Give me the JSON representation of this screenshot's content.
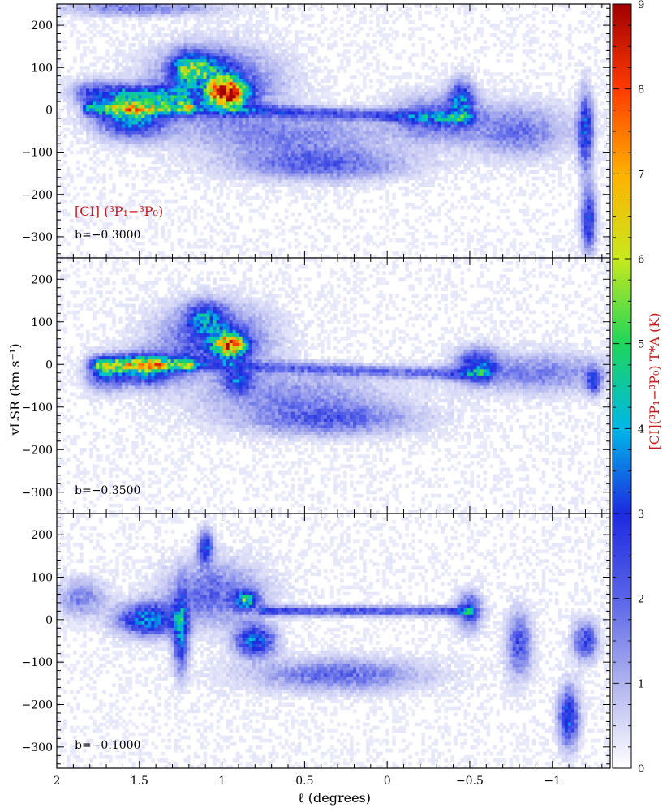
{
  "chart_data": {
    "type": "heatmap",
    "panels": [
      {
        "label": "b=−0.3000",
        "line_label": "[CI] (³P₁−³P₀)",
        "emission_blobs": [
          {
            "l": 0.97,
            "v": 40,
            "intensity": 7.2,
            "sl": 0.08,
            "sv": 22
          },
          {
            "l": 1.05,
            "v": 60,
            "intensity": 2.5,
            "sl": 0.25,
            "sv": 55
          },
          {
            "l": 1.55,
            "v": -20,
            "intensity": 3.6,
            "sl": 0.14,
            "sv": 30
          },
          {
            "l": 1.75,
            "v": 40,
            "intensity": 2.6,
            "sl": 0.1,
            "sv": 18
          },
          {
            "l": 1.22,
            "v": 100,
            "intensity": 2.8,
            "sl": 0.06,
            "sv": 25
          },
          {
            "l": 1.1,
            "v": 100,
            "intensity": 2.2,
            "sl": 0.1,
            "sv": 25
          },
          {
            "l": -0.45,
            "v": 25,
            "intensity": 3.0,
            "sl": 0.05,
            "sv": 30
          },
          {
            "l": -0.3,
            "v": -20,
            "intensity": 2.0,
            "sl": 0.18,
            "sv": 35
          },
          {
            "l": 0.4,
            "v": -130,
            "intensity": 1.8,
            "sl": 0.35,
            "sv": 25
          },
          {
            "l": -1.2,
            "v": -50,
            "intensity": 3.0,
            "sl": 0.03,
            "sv": 60
          },
          {
            "l": -1.22,
            "v": -260,
            "intensity": 2.8,
            "sl": 0.03,
            "sv": 50
          },
          {
            "l": 0.6,
            "v": -60,
            "intensity": 1.4,
            "sl": 0.4,
            "sv": 35
          },
          {
            "l": 1.5,
            "v": 240,
            "intensity": 1.5,
            "sl": 0.3,
            "sv": 12
          },
          {
            "l": -0.8,
            "v": -50,
            "intensity": 1.6,
            "sl": 0.2,
            "sv": 40
          }
        ],
        "lanes": [
          {
            "l1": 1.8,
            "v1": 3,
            "l2": 1.2,
            "v2": 3,
            "intensity": 3.4,
            "width": 6
          },
          {
            "l1": 1.2,
            "v1": 3,
            "l2": -0.5,
            "v2": -20,
            "intensity": 1.8,
            "width": 5
          },
          {
            "l1": 1.6,
            "v1": 35,
            "l2": 1.25,
            "v2": 35,
            "intensity": 2.6,
            "width": 8
          }
        ]
      },
      {
        "label": "b=−0.3500",
        "emission_blobs": [
          {
            "l": 0.95,
            "v": 45,
            "intensity": 5.6,
            "sl": 0.07,
            "sv": 20
          },
          {
            "l": 1.05,
            "v": 60,
            "intensity": 2.4,
            "sl": 0.22,
            "sv": 50
          },
          {
            "l": 1.45,
            "v": -10,
            "intensity": 3.8,
            "sl": 0.12,
            "sv": 25
          },
          {
            "l": 1.7,
            "v": -20,
            "intensity": 2.8,
            "sl": 0.08,
            "sv": 25
          },
          {
            "l": 1.1,
            "v": 110,
            "intensity": 2.6,
            "sl": 0.08,
            "sv": 25
          },
          {
            "l": 0.9,
            "v": -40,
            "intensity": 2.4,
            "sl": 0.06,
            "sv": 18
          },
          {
            "l": -0.55,
            "v": 0,
            "intensity": 2.8,
            "sl": 0.08,
            "sv": 25
          },
          {
            "l": 0.35,
            "v": -130,
            "intensity": 1.8,
            "sl": 0.35,
            "sv": 25
          },
          {
            "l": -1.25,
            "v": -40,
            "intensity": 2.6,
            "sl": 0.03,
            "sv": 20
          },
          {
            "l": -0.9,
            "v": -20,
            "intensity": 1.5,
            "sl": 0.3,
            "sv": 30
          },
          {
            "l": 0.6,
            "v": -70,
            "intensity": 1.2,
            "sl": 0.4,
            "sv": 35
          }
        ],
        "lanes": [
          {
            "l1": 1.75,
            "v1": 0,
            "l2": 1.2,
            "v2": 0,
            "intensity": 3.2,
            "width": 6
          },
          {
            "l1": 1.2,
            "v1": 0,
            "l2": -0.6,
            "v2": -25,
            "intensity": 1.6,
            "width": 5
          }
        ]
      },
      {
        "label": "b=−0.1000",
        "emission_blobs": [
          {
            "l": 0.85,
            "v": 45,
            "intensity": 3.6,
            "sl": 0.05,
            "sv": 15
          },
          {
            "l": 0.8,
            "v": -50,
            "intensity": 3.4,
            "sl": 0.08,
            "sv": 25
          },
          {
            "l": 1.45,
            "v": 0,
            "intensity": 3.6,
            "sl": 0.12,
            "sv": 25
          },
          {
            "l": 1.25,
            "v": -30,
            "intensity": 3.4,
            "sl": 0.03,
            "sv": 60
          },
          {
            "l": 1.1,
            "v": 170,
            "intensity": 3.0,
            "sl": 0.03,
            "sv": 25
          },
          {
            "l": 1.05,
            "v": 60,
            "intensity": 1.8,
            "sl": 0.2,
            "sv": 50
          },
          {
            "l": 0.3,
            "v": -130,
            "intensity": 1.8,
            "sl": 0.35,
            "sv": 25
          },
          {
            "l": -0.5,
            "v": 20,
            "intensity": 2.4,
            "sl": 0.05,
            "sv": 30
          },
          {
            "l": -0.8,
            "v": -60,
            "intensity": 2.2,
            "sl": 0.05,
            "sv": 50
          },
          {
            "l": -1.1,
            "v": -230,
            "intensity": 3.2,
            "sl": 0.04,
            "sv": 45
          },
          {
            "l": -1.2,
            "v": -50,
            "intensity": 2.4,
            "sl": 0.05,
            "sv": 30
          },
          {
            "l": 1.85,
            "v": 50,
            "intensity": 1.4,
            "sl": 0.1,
            "sv": 30
          }
        ],
        "lanes": [
          {
            "l1": 0.75,
            "v1": 20,
            "l2": -0.5,
            "v2": 20,
            "intensity": 2.2,
            "width": 4
          }
        ]
      }
    ],
    "x_axis": {
      "label": "ℓ (degrees)",
      "range": [
        2,
        -1.35
      ],
      "ticks": [
        2,
        1.5,
        1,
        0.5,
        0,
        -0.5,
        -1
      ],
      "tick_labels": [
        "2",
        "1.5",
        "1",
        "0.5",
        "0",
        "−0.5",
        "−1"
      ]
    },
    "y_axis": {
      "label": "vLSR (km s⁻¹)",
      "range": [
        -350,
        250
      ],
      "ticks": [
        200,
        100,
        0,
        -100,
        -200,
        -300
      ],
      "tick_labels": [
        "200",
        "100",
        "0",
        "−100",
        "−200",
        "−300"
      ]
    },
    "colorbar": {
      "label": "[CI](³P₁−³P₀) T*A (K)",
      "range": [
        0,
        9
      ],
      "ticks": [
        0,
        1,
        2,
        3,
        4,
        5,
        6,
        7,
        8,
        9
      ],
      "tick_labels": [
        "0",
        "1",
        "2",
        "3",
        "4",
        "5",
        "6",
        "7",
        "8",
        "9"
      ],
      "colormap": [
        "#ffffff",
        "#b0b4ee",
        "#5a64e8",
        "#1d2ae0",
        "#00b7e8",
        "#1dd65a",
        "#c8e81d",
        "#ffb000",
        "#ff3a00",
        "#a00000"
      ]
    }
  }
}
